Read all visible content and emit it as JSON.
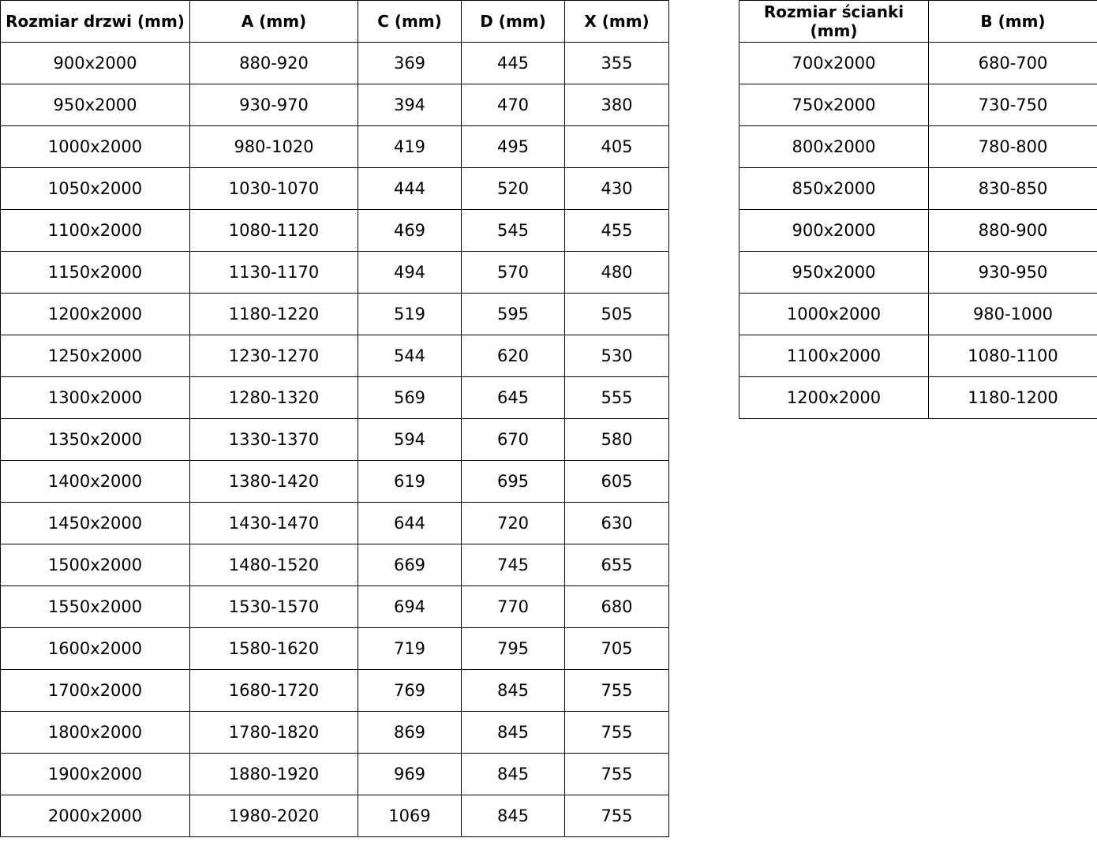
{
  "doors_table": {
    "headers": [
      "Rozmiar drzwi (mm)",
      "A (mm)",
      "C (mm)",
      "D (mm)",
      "X (mm)"
    ],
    "rows": [
      [
        "900x2000",
        "880-920",
        "369",
        "445",
        "355"
      ],
      [
        "950x2000",
        "930-970",
        "394",
        "470",
        "380"
      ],
      [
        "1000x2000",
        "980-1020",
        "419",
        "495",
        "405"
      ],
      [
        "1050x2000",
        "1030-1070",
        "444",
        "520",
        "430"
      ],
      [
        "1100x2000",
        "1080-1120",
        "469",
        "545",
        "455"
      ],
      [
        "1150x2000",
        "1130-1170",
        "494",
        "570",
        "480"
      ],
      [
        "1200x2000",
        "1180-1220",
        "519",
        "595",
        "505"
      ],
      [
        "1250x2000",
        "1230-1270",
        "544",
        "620",
        "530"
      ],
      [
        "1300x2000",
        "1280-1320",
        "569",
        "645",
        "555"
      ],
      [
        "1350x2000",
        "1330-1370",
        "594",
        "670",
        "580"
      ],
      [
        "1400x2000",
        "1380-1420",
        "619",
        "695",
        "605"
      ],
      [
        "1450x2000",
        "1430-1470",
        "644",
        "720",
        "630"
      ],
      [
        "1500x2000",
        "1480-1520",
        "669",
        "745",
        "655"
      ],
      [
        "1550x2000",
        "1530-1570",
        "694",
        "770",
        "680"
      ],
      [
        "1600x2000",
        "1580-1620",
        "719",
        "795",
        "705"
      ],
      [
        "1700x2000",
        "1680-1720",
        "769",
        "845",
        "755"
      ],
      [
        "1800x2000",
        "1780-1820",
        "869",
        "845",
        "755"
      ],
      [
        "1900x2000",
        "1880-1920",
        "969",
        "845",
        "755"
      ],
      [
        "2000x2000",
        "1980-2020",
        "1069",
        "845",
        "755"
      ]
    ]
  },
  "wall_table": {
    "headers": [
      "Rozmiar ścianki (mm)",
      "B (mm)"
    ],
    "rows": [
      [
        "700x2000",
        "680-700"
      ],
      [
        "750x2000",
        "730-750"
      ],
      [
        "800x2000",
        "780-800"
      ],
      [
        "850x2000",
        "830-850"
      ],
      [
        "900x2000",
        "880-900"
      ],
      [
        "950x2000",
        "930-950"
      ],
      [
        "1000x2000",
        "980-1000"
      ],
      [
        "1100x2000",
        "1080-1100"
      ],
      [
        "1200x2000",
        "1180-1200"
      ]
    ]
  }
}
